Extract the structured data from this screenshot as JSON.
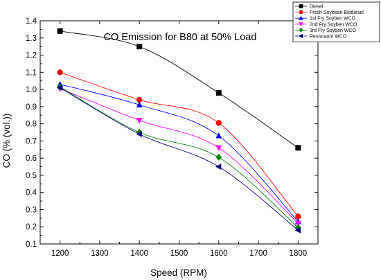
{
  "chart_data": {
    "type": "line",
    "title": "CO Emission for B80 at 50% Load",
    "xlabel": "Speed (RPM)",
    "ylabel": "CO (% (vol.))",
    "x": [
      1200,
      1400,
      1600,
      1800
    ],
    "xlim": [
      1150,
      1850
    ],
    "ylim": [
      0.1,
      1.4
    ],
    "x_ticks": [
      1200,
      1300,
      1400,
      1500,
      1600,
      1700,
      1800
    ],
    "y_ticks": [
      0.1,
      0.2,
      0.3,
      0.4,
      0.5,
      0.6,
      0.7,
      0.8,
      0.9,
      1.0,
      1.1,
      1.2,
      1.3,
      1.4
    ],
    "grid": false,
    "legend_position": "top-right",
    "series": [
      {
        "name": "Diesel",
        "values": [
          1.34,
          1.25,
          0.98,
          0.66
        ],
        "color": "#000000",
        "marker": "square"
      },
      {
        "name": "Fresh Soybean Biodiesel",
        "values": [
          1.1,
          0.94,
          0.805,
          0.26
        ],
        "color": "#ff0000",
        "marker": "circle"
      },
      {
        "name": "1st Fry Soyben WCO",
        "values": [
          1.03,
          0.91,
          0.73,
          0.23
        ],
        "color": "#0000ff",
        "marker": "triangle-up"
      },
      {
        "name": "2nd Fry Soyben WCO",
        "values": [
          1.005,
          0.82,
          0.66,
          0.22
        ],
        "color": "#ff00ff",
        "marker": "triangle-down"
      },
      {
        "name": "3rd Fry Soyben WCO",
        "values": [
          1.015,
          0.75,
          0.605,
          0.195
        ],
        "color": "#008000",
        "marker": "diamond"
      },
      {
        "name": "Resturaunt WCO",
        "values": [
          1.01,
          0.74,
          0.55,
          0.18
        ],
        "color": "#000080",
        "marker": "triangle-left"
      }
    ]
  }
}
